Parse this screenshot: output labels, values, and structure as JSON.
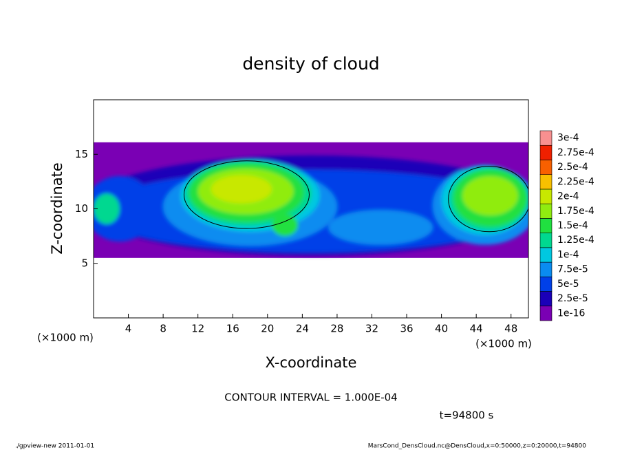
{
  "chart_data": {
    "type": "contour",
    "title": "density of cloud",
    "x_label": "X-coordinate",
    "y_label": "Z-coordinate",
    "x_unit": "(×1000 m)",
    "y_unit": "(×1000 m)",
    "xlim": [
      0,
      50
    ],
    "ylim": [
      0,
      20
    ],
    "xticks": [
      4,
      8,
      12,
      16,
      20,
      24,
      28,
      32,
      36,
      40,
      44,
      48
    ],
    "yticks": [
      5,
      10,
      15
    ],
    "levels": [
      {
        "value": 1e-16,
        "label": "1e-16",
        "color": "#7a00b4"
      },
      {
        "value": 2.5e-05,
        "label": "2.5e-5",
        "color": "#1a00b8"
      },
      {
        "value": 5e-05,
        "label": "5e-5",
        "color": "#0040e8"
      },
      {
        "value": 7.5e-05,
        "label": "7.5e-5",
        "color": "#0a8cf0"
      },
      {
        "value": 0.0001,
        "label": "1e-4",
        "color": "#00c8e0"
      },
      {
        "value": 0.000125,
        "label": "1.25e-4",
        "color": "#00d890"
      },
      {
        "value": 0.00015,
        "label": "1.5e-4",
        "color": "#20e040"
      },
      {
        "value": 0.000175,
        "label": "1.75e-4",
        "color": "#90ec10"
      },
      {
        "value": 0.0002,
        "label": "2e-4",
        "color": "#c8e800"
      },
      {
        "value": 0.000225,
        "label": "2.25e-4",
        "color": "#f8c000"
      },
      {
        "value": 0.00025,
        "label": "2.5e-4",
        "color": "#f86000"
      },
      {
        "value": 0.000275,
        "label": "2.75e-4",
        "color": "#f02000"
      },
      {
        "value": 0.0003,
        "label": "3e-4",
        "color": "#f89090"
      }
    ],
    "contour_interval": "CONTOUR INTERVAL = 1.000E-04",
    "time_label": "t=94800 s",
    "footer_left": "./gpview-new  2011-01-01",
    "footer_right": "MarsCond_DensCloud.nc@DensCloud,x=0:50000,z=0:20000,t=94800"
  }
}
